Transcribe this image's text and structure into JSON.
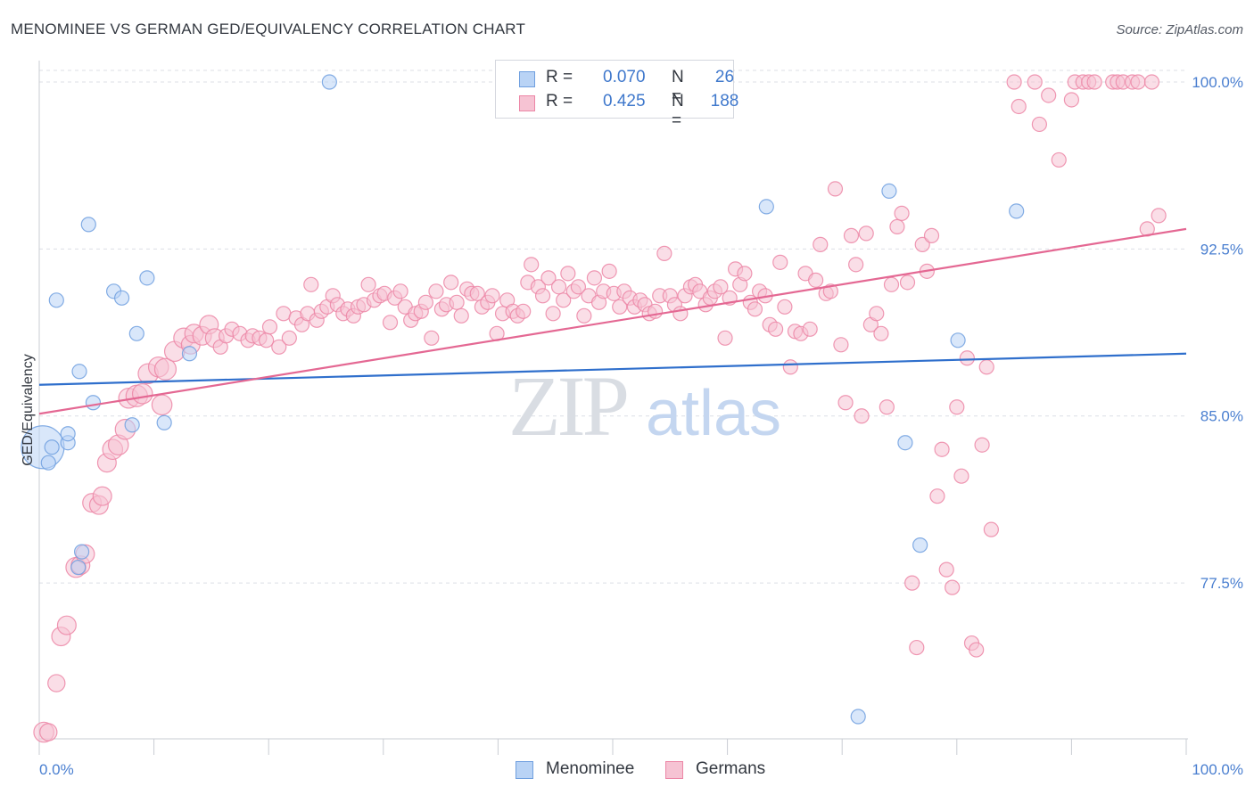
{
  "header": {
    "title": "MENOMINEE VS GERMAN GED/EQUIVALENCY CORRELATION CHART",
    "source": "Source: ZipAtlas.com"
  },
  "colors": {
    "blue": "#6f9fdf",
    "blue_fill": "#b9d3f5",
    "blue_line": "#2f6fcc",
    "pink": "#ec86a6",
    "pink_fill": "#f6c3d3",
    "pink_line": "#e46893",
    "tick": "#4a7fd0",
    "grid": "#dcdfe5"
  },
  "legend": {
    "rows": [
      {
        "r_label": "R =",
        "r_value": "0.070",
        "n_label": "N =",
        "n_value": "26"
      },
      {
        "r_label": "R =",
        "r_value": "0.425",
        "n_label": "N =",
        "n_value": "188"
      }
    ]
  },
  "bottom_legend": {
    "items": [
      "Menominee",
      "Germans"
    ]
  },
  "watermark": {
    "zip": "ZIP",
    "atlas": "atlas"
  },
  "chart_data": {
    "type": "scatter",
    "title": "MENOMINEE VS GERMAN GED/EQUIVALENCY CORRELATION CHART",
    "xlabel": "",
    "ylabel": "GED/Equivalency",
    "xlim": [
      0,
      100
    ],
    "ylim": [
      70.5,
      100.8
    ],
    "x_tick_labels": [
      "0.0%",
      "100.0%"
    ],
    "y_ticks": [
      77.5,
      85.0,
      92.5,
      100.0
    ],
    "y_tick_labels": [
      "77.5%",
      "85.0%",
      "92.5%",
      "100.0%"
    ],
    "grid": true,
    "legend_position": "top-center",
    "series": [
      {
        "name": "Menominee",
        "r": 0.07,
        "n": 26,
        "trend": {
          "x": [
            0,
            100
          ],
          "y": [
            86.4,
            87.8
          ]
        },
        "points": [
          [
            0.3,
            83.6,
            3.0
          ],
          [
            0.8,
            82.9,
            1
          ],
          [
            1.1,
            83.6,
            1
          ],
          [
            1.5,
            90.2,
            1
          ],
          [
            2.5,
            83.8,
            1
          ],
          [
            2.5,
            84.2,
            1
          ],
          [
            3.4,
            78.2,
            1
          ],
          [
            3.5,
            87.0,
            1
          ],
          [
            3.7,
            78.9,
            1
          ],
          [
            4.3,
            93.6,
            1
          ],
          [
            4.7,
            85.6,
            1
          ],
          [
            6.5,
            90.6,
            1
          ],
          [
            7.2,
            90.3,
            1
          ],
          [
            8.1,
            84.6,
            1
          ],
          [
            8.5,
            88.7,
            1
          ],
          [
            9.4,
            91.2,
            1
          ],
          [
            10.9,
            84.7,
            1
          ],
          [
            13.1,
            87.8,
            1
          ],
          [
            25.3,
            100.0,
            1
          ],
          [
            63.4,
            94.4,
            1
          ],
          [
            71.4,
            71.5,
            1
          ],
          [
            74.1,
            95.1,
            1
          ],
          [
            75.5,
            83.8,
            1
          ],
          [
            76.8,
            79.2,
            1
          ],
          [
            80.1,
            88.4,
            1
          ],
          [
            85.2,
            94.2,
            1
          ]
        ]
      },
      {
        "name": "Germans",
        "r": 0.425,
        "n": 188,
        "trend": {
          "x": [
            0,
            100
          ],
          "y": [
            85.1,
            93.4
          ]
        },
        "points": [
          [
            0.4,
            70.8,
            1.4
          ],
          [
            0.8,
            70.8,
            1.2
          ],
          [
            1.5,
            73.0,
            1.2
          ],
          [
            1.9,
            75.1,
            1.3
          ],
          [
            2.4,
            75.6,
            1.3
          ],
          [
            3.2,
            78.2,
            1.4
          ],
          [
            3.6,
            78.3,
            1.3
          ],
          [
            4.0,
            78.8,
            1.3
          ],
          [
            4.6,
            81.1,
            1.3
          ],
          [
            5.2,
            81.0,
            1.3
          ],
          [
            5.5,
            81.4,
            1.3
          ],
          [
            5.9,
            82.9,
            1.3
          ],
          [
            6.4,
            83.5,
            1.4
          ],
          [
            6.9,
            83.7,
            1.4
          ],
          [
            7.5,
            84.4,
            1.4
          ],
          [
            7.8,
            85.8,
            1.4
          ],
          [
            8.5,
            85.9,
            1.5
          ],
          [
            9.0,
            86.0,
            1.4
          ],
          [
            9.5,
            86.9,
            1.4
          ],
          [
            10.4,
            87.2,
            1.4
          ],
          [
            10.7,
            85.5,
            1.4
          ],
          [
            11.0,
            87.1,
            1.5
          ],
          [
            11.8,
            87.9,
            1.4
          ],
          [
            12.6,
            88.5,
            1.4
          ],
          [
            13.2,
            88.2,
            1.3
          ],
          [
            13.5,
            88.7,
            1.3
          ],
          [
            14.2,
            88.6,
            1.3
          ],
          [
            14.8,
            89.1,
            1.3
          ],
          [
            15.3,
            88.5,
            1.3
          ],
          [
            15.8,
            88.1,
            1
          ],
          [
            16.3,
            88.6,
            1
          ],
          [
            16.8,
            88.9,
            1
          ],
          [
            17.5,
            88.7,
            1
          ],
          [
            18.2,
            88.4,
            1
          ],
          [
            18.6,
            88.6,
            1
          ],
          [
            19.2,
            88.5,
            1
          ],
          [
            19.8,
            88.4,
            1
          ],
          [
            20.1,
            89.0,
            1
          ],
          [
            20.9,
            88.1,
            1
          ],
          [
            21.3,
            89.6,
            1
          ],
          [
            21.8,
            88.5,
            1
          ],
          [
            22.4,
            89.4,
            1
          ],
          [
            22.9,
            89.1,
            1
          ],
          [
            23.4,
            89.6,
            1
          ],
          [
            23.7,
            90.9,
            1
          ],
          [
            24.2,
            89.3,
            1
          ],
          [
            24.6,
            89.7,
            1
          ],
          [
            25.1,
            89.9,
            1
          ],
          [
            25.6,
            90.4,
            1
          ],
          [
            26.0,
            90.0,
            1
          ],
          [
            26.5,
            89.6,
            1
          ],
          [
            26.9,
            89.8,
            1
          ],
          [
            27.4,
            89.5,
            1
          ],
          [
            27.8,
            89.9,
            1
          ],
          [
            28.3,
            90.0,
            1
          ],
          [
            28.7,
            90.9,
            1
          ],
          [
            29.2,
            90.2,
            1
          ],
          [
            29.7,
            90.4,
            1
          ],
          [
            30.1,
            90.5,
            1
          ],
          [
            30.6,
            89.2,
            1
          ],
          [
            31.0,
            90.3,
            1
          ],
          [
            31.5,
            90.6,
            1
          ],
          [
            31.9,
            89.9,
            1
          ],
          [
            32.4,
            89.3,
            1
          ],
          [
            32.8,
            89.6,
            1
          ],
          [
            33.3,
            89.7,
            1
          ],
          [
            33.7,
            90.1,
            1
          ],
          [
            34.2,
            88.5,
            1
          ],
          [
            34.6,
            90.6,
            1
          ],
          [
            35.1,
            89.8,
            1
          ],
          [
            35.5,
            90.0,
            1
          ],
          [
            35.9,
            91.0,
            1
          ],
          [
            36.4,
            90.1,
            1
          ],
          [
            36.8,
            89.5,
            1
          ],
          [
            37.3,
            90.7,
            1
          ],
          [
            37.7,
            90.5,
            1
          ],
          [
            38.2,
            90.5,
            1
          ],
          [
            38.6,
            89.9,
            1
          ],
          [
            39.1,
            90.1,
            1
          ],
          [
            39.5,
            90.4,
            1
          ],
          [
            39.9,
            88.7,
            1
          ],
          [
            40.4,
            89.6,
            1
          ],
          [
            40.8,
            90.2,
            1
          ],
          [
            41.3,
            89.7,
            1
          ],
          [
            41.7,
            89.5,
            1
          ],
          [
            42.2,
            89.7,
            1
          ],
          [
            42.6,
            91.0,
            1
          ],
          [
            42.9,
            91.8,
            1
          ],
          [
            43.5,
            90.8,
            1
          ],
          [
            43.9,
            90.4,
            1
          ],
          [
            44.4,
            91.2,
            1
          ],
          [
            44.8,
            89.6,
            1
          ],
          [
            45.3,
            90.8,
            1
          ],
          [
            45.7,
            90.2,
            1
          ],
          [
            46.1,
            91.4,
            1
          ],
          [
            46.6,
            90.6,
            1
          ],
          [
            47.0,
            90.8,
            1
          ],
          [
            47.5,
            89.5,
            1
          ],
          [
            47.9,
            90.4,
            1
          ],
          [
            48.4,
            91.2,
            1
          ],
          [
            48.8,
            90.1,
            1
          ],
          [
            49.2,
            90.6,
            1
          ],
          [
            49.7,
            91.5,
            1
          ],
          [
            50.1,
            90.5,
            1
          ],
          [
            50.6,
            89.9,
            1
          ],
          [
            51.0,
            90.6,
            1
          ],
          [
            51.5,
            90.3,
            1
          ],
          [
            51.9,
            89.9,
            1
          ],
          [
            52.4,
            90.2,
            1
          ],
          [
            52.8,
            90.0,
            1
          ],
          [
            53.2,
            89.6,
            1
          ],
          [
            53.7,
            89.7,
            1
          ],
          [
            54.1,
            90.4,
            1
          ],
          [
            54.5,
            92.3,
            1
          ],
          [
            55.0,
            90.4,
            1
          ],
          [
            55.4,
            90.0,
            1
          ],
          [
            55.9,
            89.6,
            1
          ],
          [
            56.3,
            90.4,
            1
          ],
          [
            56.8,
            90.8,
            1
          ],
          [
            57.2,
            90.9,
            1
          ],
          [
            57.6,
            90.6,
            1
          ],
          [
            58.1,
            90.0,
            1
          ],
          [
            58.5,
            90.3,
            1
          ],
          [
            58.9,
            90.6,
            1
          ],
          [
            59.4,
            90.8,
            1
          ],
          [
            59.8,
            88.5,
            1
          ],
          [
            60.2,
            90.3,
            1
          ],
          [
            60.7,
            91.6,
            1
          ],
          [
            61.1,
            90.9,
            1
          ],
          [
            61.5,
            91.4,
            1
          ],
          [
            62.0,
            90.1,
            1
          ],
          [
            62.4,
            89.8,
            1
          ],
          [
            62.8,
            90.6,
            1
          ],
          [
            63.3,
            90.4,
            1
          ],
          [
            63.7,
            89.1,
            1
          ],
          [
            64.2,
            88.9,
            1
          ],
          [
            64.6,
            91.9,
            1
          ],
          [
            65.0,
            89.9,
            1
          ],
          [
            65.5,
            87.2,
            1
          ],
          [
            65.9,
            88.8,
            1
          ],
          [
            66.4,
            88.7,
            1
          ],
          [
            66.8,
            91.4,
            1
          ],
          [
            67.2,
            88.9,
            1
          ],
          [
            67.7,
            91.1,
            1
          ],
          [
            68.1,
            92.7,
            1
          ],
          [
            68.6,
            90.5,
            1
          ],
          [
            69.0,
            90.6,
            1
          ],
          [
            69.4,
            95.2,
            1
          ],
          [
            69.9,
            88.2,
            1
          ],
          [
            70.3,
            85.6,
            1
          ],
          [
            70.8,
            93.1,
            1
          ],
          [
            71.2,
            91.8,
            1
          ],
          [
            71.7,
            85.0,
            1
          ],
          [
            72.1,
            93.2,
            1
          ],
          [
            72.5,
            89.1,
            1
          ],
          [
            73.0,
            89.6,
            1
          ],
          [
            73.4,
            88.7,
            1
          ],
          [
            73.9,
            85.4,
            1
          ],
          [
            74.3,
            90.9,
            1
          ],
          [
            74.8,
            93.5,
            1
          ],
          [
            75.2,
            94.1,
            1
          ],
          [
            75.7,
            91.0,
            1
          ],
          [
            76.1,
            77.5,
            1
          ],
          [
            76.5,
            74.6,
            1
          ],
          [
            77.0,
            92.7,
            1
          ],
          [
            77.4,
            91.5,
            1
          ],
          [
            77.8,
            93.1,
            1
          ],
          [
            78.3,
            81.4,
            1
          ],
          [
            78.7,
            83.5,
            1
          ],
          [
            79.1,
            78.1,
            1
          ],
          [
            79.6,
            77.3,
            1
          ],
          [
            80.0,
            85.4,
            1
          ],
          [
            80.4,
            82.3,
            1
          ],
          [
            80.9,
            87.6,
            1
          ],
          [
            81.3,
            74.8,
            1
          ],
          [
            81.7,
            74.5,
            1
          ],
          [
            82.2,
            83.7,
            1
          ],
          [
            82.6,
            87.2,
            1
          ],
          [
            83.0,
            79.9,
            1
          ],
          [
            85.0,
            100.0,
            1
          ],
          [
            85.4,
            98.9,
            1
          ],
          [
            86.8,
            100.0,
            1
          ],
          [
            87.2,
            98.1,
            1
          ],
          [
            88.0,
            99.4,
            1
          ],
          [
            88.9,
            96.5,
            1
          ],
          [
            90.0,
            99.2,
            1
          ],
          [
            90.3,
            100.0,
            1
          ],
          [
            91.0,
            100.0,
            1
          ],
          [
            91.5,
            100.0,
            1
          ],
          [
            92.0,
            100.0,
            1
          ],
          [
            93.6,
            100.0,
            1
          ],
          [
            94.0,
            100.0,
            1
          ],
          [
            94.5,
            100.0,
            1
          ],
          [
            95.3,
            100.0,
            1
          ],
          [
            95.8,
            100.0,
            1
          ],
          [
            96.6,
            93.4,
            1
          ],
          [
            97.0,
            100.0,
            1
          ],
          [
            97.6,
            94.0,
            1
          ]
        ]
      }
    ]
  }
}
